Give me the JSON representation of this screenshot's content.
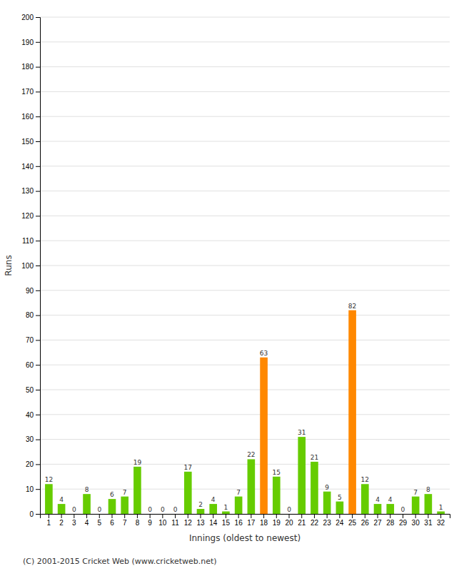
{
  "chart_data": {
    "type": "bar",
    "xlabel": "Innings (oldest to newest)",
    "ylabel": "Runs",
    "annotations": [
      "(C) 2001-2015 Cricket Web (www.cricketweb.net)"
    ],
    "categories": [
      "1",
      "2",
      "3",
      "4",
      "5",
      "6",
      "7",
      "8",
      "9",
      "10",
      "11",
      "12",
      "13",
      "14",
      "15",
      "16",
      "17",
      "18",
      "19",
      "20",
      "21",
      "22",
      "23",
      "24",
      "25",
      "26",
      "27",
      "28",
      "29",
      "30",
      "31",
      "32"
    ],
    "values": [
      12,
      4,
      0,
      8,
      0,
      6,
      7,
      19,
      0,
      0,
      0,
      17,
      2,
      4,
      1,
      7,
      22,
      63,
      15,
      0,
      31,
      21,
      9,
      5,
      82,
      12,
      4,
      4,
      0,
      7,
      8,
      1
    ],
    "colors": [
      "#66cc00",
      "#66cc00",
      "#66cc00",
      "#66cc00",
      "#66cc00",
      "#66cc00",
      "#66cc00",
      "#66cc00",
      "#66cc00",
      "#66cc00",
      "#66cc00",
      "#66cc00",
      "#66cc00",
      "#66cc00",
      "#66cc00",
      "#66cc00",
      "#66cc00",
      "#ff8800",
      "#66cc00",
      "#66cc00",
      "#66cc00",
      "#66cc00",
      "#66cc00",
      "#66cc00",
      "#ff8800",
      "#66cc00",
      "#66cc00",
      "#66cc00",
      "#66cc00",
      "#66cc00",
      "#66cc00",
      "#66cc00"
    ],
    "ylim": [
      0,
      200
    ],
    "yticks": [
      0,
      10,
      20,
      30,
      40,
      50,
      60,
      70,
      80,
      90,
      100,
      110,
      120,
      130,
      140,
      150,
      160,
      170,
      180,
      190,
      200
    ],
    "grid": true,
    "data_labels": true
  }
}
